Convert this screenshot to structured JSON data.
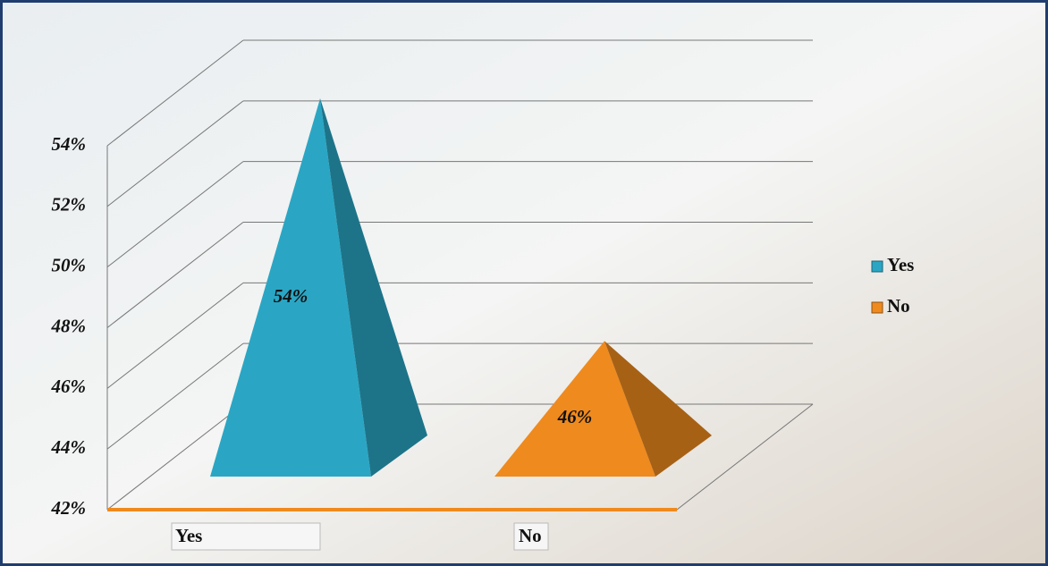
{
  "chart_data": {
    "type": "pyramid",
    "categories": [
      "Yes",
      "No"
    ],
    "values": [
      54,
      46
    ],
    "value_labels": [
      "54%",
      "46%"
    ],
    "colors": [
      "#2aa6c4",
      "#ef8a1e"
    ],
    "ylim": [
      42,
      54
    ],
    "yticks": [
      {
        "value": 42,
        "label": "42%"
      },
      {
        "value": 44,
        "label": "44%"
      },
      {
        "value": 46,
        "label": "46%"
      },
      {
        "value": 48,
        "label": "48%"
      },
      {
        "value": 50,
        "label": "50%"
      },
      {
        "value": 52,
        "label": "52%"
      },
      {
        "value": 54,
        "label": "54%"
      }
    ],
    "grid": true,
    "legend": "right"
  }
}
